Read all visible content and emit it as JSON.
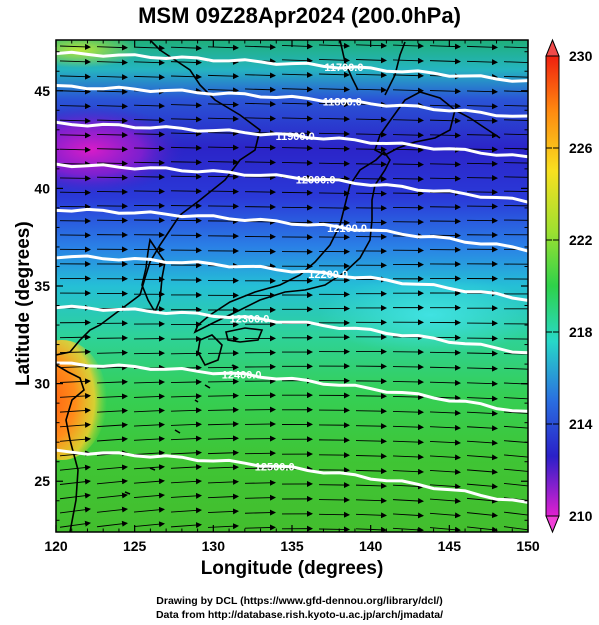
{
  "title": "MSM 09Z28Apr2024 (200.0hPa)",
  "x_axis": {
    "label": "Longitude (degrees)",
    "ticks": [
      "120",
      "125",
      "130",
      "135",
      "140",
      "145",
      "150"
    ],
    "range": [
      120,
      150
    ]
  },
  "y_axis": {
    "label": "Latitude  (degrees)",
    "ticks": [
      "25",
      "30",
      "35",
      "40",
      "45"
    ],
    "range": [
      22.4,
      47.6
    ]
  },
  "colorbar": {
    "ticks": [
      "230",
      "226",
      "222",
      "218",
      "214",
      "210"
    ],
    "range": [
      210,
      230
    ]
  },
  "contours": [
    {
      "label": "11700.0",
      "lat": 46.2
    },
    {
      "label": "11800.0",
      "lat": 44.5
    },
    {
      "label": "11900.0",
      "lat": 42.6
    },
    {
      "label": "12000.0",
      "lat": 40.5
    },
    {
      "label": "12100.0",
      "lat": 38.2
    },
    {
      "label": "12200.0",
      "lat": 35.8
    },
    {
      "label": "12300.0",
      "lat": 33.2
    },
    {
      "label": "12400.0",
      "lat": 30.3
    },
    {
      "label": "12500.0",
      "lat": 25.8
    }
  ],
  "credits": {
    "line1": "Drawing by DCL (https://www.gfd-dennou.org/library/dcl/)",
    "line2": "Data from http://database.rish.kyoto-u.ac.jp/arch/jmadata/"
  }
}
